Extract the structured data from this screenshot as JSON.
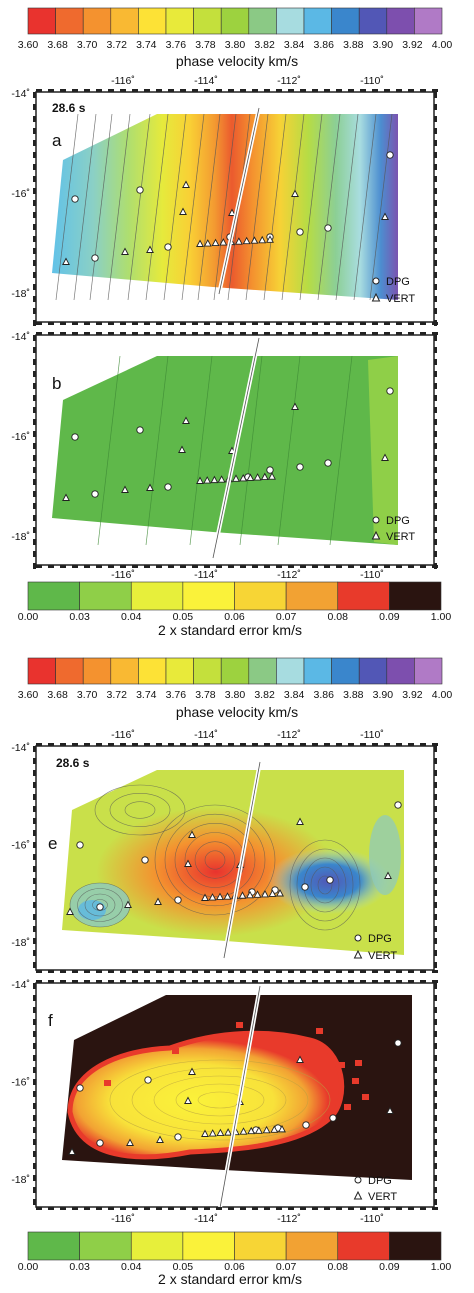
{
  "colors": {
    "phase_velocity_scale": [
      "#e9332e",
      "#ef6a2e",
      "#f4922f",
      "#f9b933",
      "#fde236",
      "#e8ea3a",
      "#c4e03c",
      "#9dd23f",
      "#8bc985",
      "#a7dce0",
      "#5bb8e5",
      "#3a86cc",
      "#5257b6",
      "#7d4fae",
      "#b07ac6"
    ],
    "std_error_scale": [
      "#5fb84a",
      "#8fcf48",
      "#e7ef3b",
      "#faf23a",
      "#f7d535",
      "#f2a233",
      "#e83a2b",
      "#2a1410"
    ],
    "station_marker": "#ffffff",
    "ridge_axis": "#ffffff"
  },
  "colorbars": {
    "top_velocity": {
      "ticks": [
        "3.60",
        "3.68",
        "3.70",
        "3.72",
        "3.74",
        "3.76",
        "3.78",
        "3.80",
        "3.82",
        "3.84",
        "3.86",
        "3.88",
        "3.90",
        "3.92",
        "4.00"
      ],
      "label": "phase velocity    km/s"
    },
    "mid_error": {
      "ticks": [
        "0.00",
        "0.03",
        "0.04",
        "0.05",
        "0.06",
        "0.07",
        "0.08",
        "0.09",
        "1.00"
      ],
      "label": "2 x standard error    km/s"
    },
    "mid_velocity": {
      "ticks": [
        "3.60",
        "3.68",
        "3.70",
        "3.72",
        "3.74",
        "3.76",
        "3.78",
        "3.80",
        "3.82",
        "3.84",
        "3.86",
        "3.88",
        "3.90",
        "3.92",
        "4.00"
      ],
      "label": "phase velocity    km/s"
    },
    "bottom_error": {
      "ticks": [
        "0.00",
        "0.03",
        "0.04",
        "0.05",
        "0.06",
        "0.07",
        "0.08",
        "0.09",
        "1.00"
      ],
      "label": "2 x standard error    km/s"
    }
  },
  "axes": {
    "lon_ticks": [
      "-116˚",
      "-114˚",
      "-112˚",
      "-110˚"
    ],
    "lat_ticks": [
      "-14˚",
      "-16˚",
      "-18˚"
    ],
    "lon_values": [
      -116,
      -114,
      -112,
      -110
    ],
    "lat_values": [
      -14,
      -16,
      -18
    ]
  },
  "panels": {
    "a": {
      "letter": "a",
      "period": "28.6 s"
    },
    "b": {
      "letter": "b"
    },
    "e": {
      "letter": "e",
      "period": "28.6 s"
    },
    "f": {
      "letter": "f"
    }
  },
  "legend": {
    "dpg": "DPG",
    "vert": "VERT"
  }
}
